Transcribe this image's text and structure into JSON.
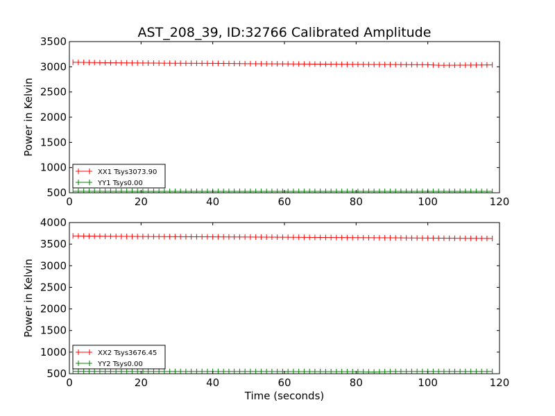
{
  "title": "AST_208_39, ID:32766 Calibrated Amplitude",
  "x_axis_label": "Time (seconds)",
  "colors": {
    "xx": "#ff0000",
    "yy": "#008000",
    "axes": "#000000"
  },
  "chart_data": [
    {
      "type": "line",
      "ylabel": "Power in Kelvin",
      "xlim": [
        0,
        120
      ],
      "ylim": [
        500,
        3500
      ],
      "xticks": [
        0,
        20,
        40,
        60,
        80,
        100,
        120
      ],
      "yticks": [
        500,
        1000,
        1500,
        2000,
        2500,
        3000,
        3500
      ],
      "grid": false,
      "legend_position": "lower-left",
      "series": [
        {
          "name": "XX1 Tsys3073.90",
          "color": "#ff0000",
          "marker": "+",
          "x": [
            1,
            10,
            20,
            30,
            40,
            50,
            60,
            70,
            80,
            90,
            100,
            103,
            110,
            118
          ],
          "y": [
            3090,
            3080,
            3075,
            3070,
            3068,
            3062,
            3058,
            3053,
            3048,
            3045,
            3040,
            3030,
            3032,
            3038
          ]
        },
        {
          "name": "YY1 Tsys0.00",
          "color": "#008000",
          "marker": "+",
          "x": [
            1,
            20,
            40,
            60,
            80,
            100,
            118
          ],
          "y": [
            530,
            528,
            528,
            527,
            527,
            527,
            527
          ]
        }
      ]
    },
    {
      "type": "line",
      "ylabel": "Power in Kelvin",
      "xlabel": "Time (seconds)",
      "xlim": [
        0,
        120
      ],
      "ylim": [
        500,
        4000
      ],
      "xticks": [
        0,
        20,
        40,
        60,
        80,
        100,
        120
      ],
      "yticks": [
        500,
        1000,
        1500,
        2000,
        2500,
        3000,
        3500,
        4000
      ],
      "grid": false,
      "legend_position": "lower-left",
      "series": [
        {
          "name": "XX2 Tsys3676.45",
          "color": "#ff0000",
          "marker": "+",
          "x": [
            1,
            10,
            20,
            30,
            40,
            50,
            60,
            70,
            80,
            90,
            100,
            110,
            118
          ],
          "y": [
            3690,
            3682,
            3676,
            3672,
            3668,
            3664,
            3660,
            3655,
            3650,
            3646,
            3640,
            3635,
            3632
          ]
        },
        {
          "name": "YY2 Tsys0.00",
          "color": "#008000",
          "marker": "+",
          "x": [
            1,
            20,
            40,
            60,
            80,
            85,
            90,
            100,
            118
          ],
          "y": [
            555,
            553,
            552,
            551,
            548,
            540,
            552,
            552,
            552
          ]
        }
      ]
    }
  ]
}
